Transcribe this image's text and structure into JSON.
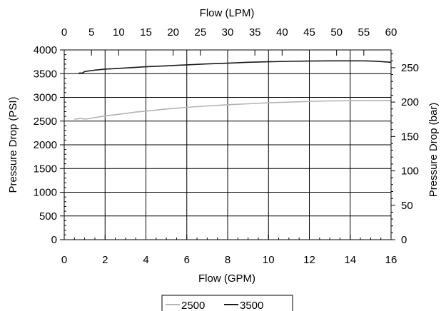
{
  "chart_data": {
    "type": "line",
    "xlabel": "Flow (GPM)",
    "x2label": "Flow (LPM)",
    "ylabel": "Pressure Drop (PSI)",
    "y2label": "Pressure Drop (bar)",
    "xlim": [
      0,
      16
    ],
    "x2lim": [
      0,
      60
    ],
    "ylim": [
      0,
      4000
    ],
    "y2lim": [
      0,
      275.8
    ],
    "x_ticks": [
      "0",
      "2",
      "4",
      "6",
      "8",
      "10",
      "12",
      "14",
      "16"
    ],
    "x2_ticks": [
      "0",
      "5",
      "10",
      "15",
      "20",
      "25",
      "30",
      "35",
      "40",
      "45",
      "50",
      "55",
      "60"
    ],
    "y_ticks": [
      "0",
      "500",
      "1000",
      "1500",
      "2000",
      "2500",
      "3000",
      "3500",
      "4000"
    ],
    "y2_ticks": [
      "0",
      "50",
      "100",
      "150",
      "200",
      "250"
    ],
    "grid": true,
    "legend_position": "bottom-center",
    "series": [
      {
        "name": "2500",
        "color": "#b4b4b4",
        "x": [
          0.5,
          0.8,
          1.0,
          1.2,
          1.5,
          2.0,
          2.5,
          3.0,
          3.5,
          4.0,
          5.0,
          6.0,
          7.0,
          8.0,
          9.0,
          10.0,
          11.0,
          12.0,
          13.0,
          14.0,
          15.0,
          15.5,
          16.0
        ],
        "y": [
          2540,
          2555,
          2545,
          2550,
          2575,
          2610,
          2635,
          2660,
          2690,
          2710,
          2755,
          2790,
          2820,
          2845,
          2865,
          2885,
          2900,
          2915,
          2925,
          2930,
          2935,
          2935,
          2935
        ]
      },
      {
        "name": "3500",
        "color": "#1a1a1a",
        "x": [
          0.7,
          0.9,
          1.0,
          1.5,
          2.0,
          3.0,
          4.0,
          5.0,
          6.0,
          7.0,
          8.0,
          9.0,
          10.0,
          11.0,
          12.0,
          13.0,
          14.0,
          14.5,
          15.0,
          15.5,
          16.0
        ],
        "y": [
          3510,
          3515,
          3545,
          3575,
          3595,
          3620,
          3645,
          3665,
          3685,
          3705,
          3720,
          3740,
          3750,
          3760,
          3765,
          3770,
          3770,
          3770,
          3765,
          3755,
          3740
        ]
      }
    ]
  }
}
